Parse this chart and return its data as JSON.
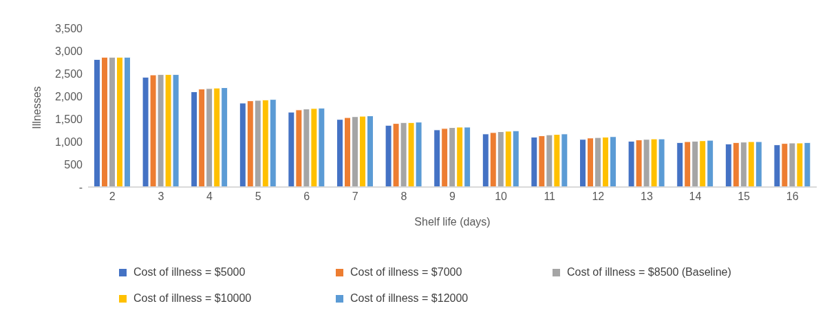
{
  "chart_data": {
    "type": "bar",
    "xlabel": "Shelf life (days)",
    "ylabel": "Illnesses",
    "categories": [
      "2",
      "3",
      "4",
      "5",
      "6",
      "7",
      "8",
      "9",
      "10",
      "11",
      "12",
      "13",
      "14",
      "15",
      "16"
    ],
    "series": [
      {
        "name": "Cost of illness = $5000",
        "color": "#4472c4",
        "values": [
          2810,
          2420,
          2100,
          1850,
          1650,
          1490,
          1360,
          1260,
          1170,
          1100,
          1050,
          1010,
          980,
          950,
          930
        ]
      },
      {
        "name": "Cost of illness = $7000",
        "color": "#ed7d31",
        "values": [
          2860,
          2470,
          2160,
          1900,
          1700,
          1530,
          1400,
          1290,
          1200,
          1130,
          1080,
          1040,
          1000,
          980,
          960
        ]
      },
      {
        "name": "Cost of illness = $8500 (Baseline)",
        "color": "#a5a5a5",
        "values": [
          2860,
          2480,
          2170,
          1910,
          1720,
          1550,
          1420,
          1310,
          1220,
          1150,
          1090,
          1050,
          1010,
          990,
          970
        ]
      },
      {
        "name": "Cost of illness = $10000",
        "color": "#ffc000",
        "values": [
          2860,
          2480,
          2180,
          1920,
          1730,
          1560,
          1420,
          1320,
          1230,
          1160,
          1100,
          1060,
          1020,
          1000,
          970
        ]
      },
      {
        "name": "Cost of illness = $12000",
        "color": "#5b9bd5",
        "values": [
          2860,
          2480,
          2190,
          1930,
          1740,
          1570,
          1430,
          1320,
          1240,
          1170,
          1110,
          1060,
          1030,
          1000,
          980
        ]
      }
    ],
    "ylim": [
      0,
      3500
    ],
    "yticks": [
      {
        "value": 0,
        "label": "-"
      },
      500,
      {
        "value": 1000,
        "label": "1,000"
      },
      {
        "value": 1500,
        "label": "1,500"
      },
      {
        "value": 2000,
        "label": "2,000"
      },
      {
        "value": 2500,
        "label": "2,500"
      },
      {
        "value": 3000,
        "label": "3,000"
      },
      {
        "value": 3500,
        "label": "3,500"
      }
    ],
    "grid": false,
    "legend": "bottom"
  }
}
